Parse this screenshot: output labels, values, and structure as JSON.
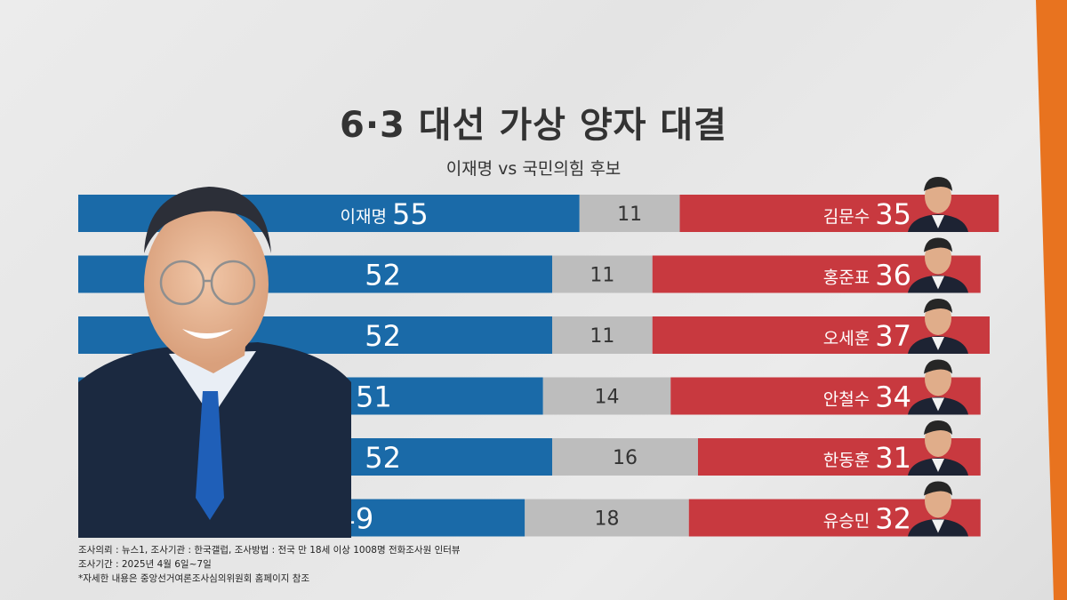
{
  "title": "6·3 대선 가상 양자 대결",
  "subtitle": "이재명 vs 국민의힘 후보",
  "colors": {
    "left": "#1a6aa8",
    "middle": "#bdbdbd",
    "right": "#c8393f",
    "background_edge": "#e8731f"
  },
  "left_label": "이재명",
  "chart_data": {
    "type": "bar",
    "stacked": true,
    "orientation": "horizontal",
    "categories": [
      "김문수",
      "홍준표",
      "오세훈",
      "안철수",
      "한동훈",
      "유승민"
    ],
    "series": [
      {
        "name": "이재명",
        "values": [
          55,
          52,
          52,
          51,
          52,
          49
        ]
      },
      {
        "values": [
          11,
          11,
          11,
          14,
          16,
          18
        ]
      },
      {
        "values": [
          35,
          36,
          37,
          34,
          31,
          32
        ]
      }
    ]
  },
  "footnotes": [
    "조사의뢰 : 뉴스1, 조사기관 : 한국갤럽, 조사방법 : 전국 만 18세 이상 1008명 전화조사원 인터뷰",
    "조사기간 : 2025년 4월 6일~7일",
    "*자세한 내용은 중앙선거여론조사심의위원회 홈페이지 참조"
  ]
}
